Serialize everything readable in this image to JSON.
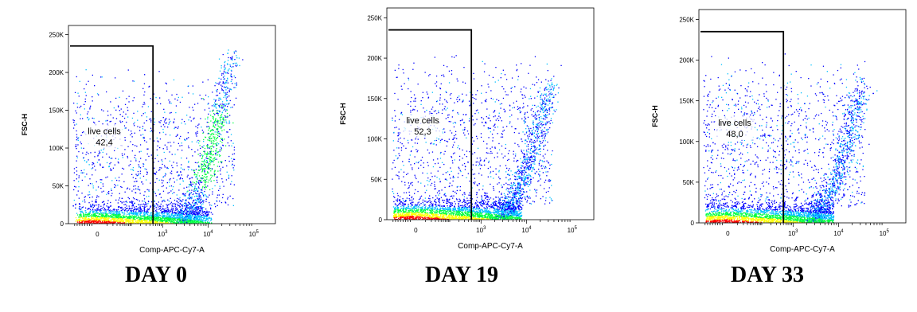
{
  "chart_data": [
    {
      "type": "scatter",
      "style": "density-dot-plot",
      "xlabel": "Comp-APC-Cy7-A",
      "ylabel": "FSC-H",
      "x_scale": "biexponential",
      "y_ticks": [
        "0",
        "50K",
        "100K",
        "150K",
        "200K",
        "250K"
      ],
      "ylim": [
        0,
        262144
      ],
      "x_ticks": [
        {
          "label": "0",
          "value": 0
        },
        {
          "label": "10",
          "exp": "3",
          "value": 1000
        },
        {
          "label": "10",
          "exp": "4",
          "value": 10000
        },
        {
          "label": "10",
          "exp": "5",
          "value": 100000
        }
      ],
      "gate": {
        "name": "live cells",
        "percent": "42,4",
        "x_max": 500,
        "y_max": 235000
      },
      "caption": "DAY 0",
      "density_colors": [
        "#0000ff",
        "#00c0ff",
        "#00ff40",
        "#ffff00",
        "#ff0000"
      ]
    },
    {
      "type": "scatter",
      "style": "density-dot-plot",
      "xlabel": "Comp-APC-Cy7-A",
      "ylabel": "FSC-H",
      "x_scale": "biexponential",
      "y_ticks": [
        "0",
        "50K",
        "100K",
        "150K",
        "200K",
        "250K"
      ],
      "ylim": [
        0,
        262144
      ],
      "x_ticks": [
        {
          "label": "0",
          "value": 0
        },
        {
          "label": "10",
          "exp": "3",
          "value": 1000
        },
        {
          "label": "10",
          "exp": "4",
          "value": 10000
        },
        {
          "label": "10",
          "exp": "5",
          "value": 100000
        }
      ],
      "gate": {
        "name": "live cells",
        "percent": "52,3",
        "x_max": 500,
        "y_max": 235000
      },
      "caption": "DAY 19",
      "density_colors": [
        "#0000ff",
        "#00c0ff",
        "#00ff40",
        "#ffff00",
        "#ff0000"
      ]
    },
    {
      "type": "scatter",
      "style": "density-dot-plot",
      "xlabel": "Comp-APC-Cy7-A",
      "ylabel": "FSC-H",
      "x_scale": "biexponential",
      "y_ticks": [
        "0",
        "50K",
        "100K",
        "150K",
        "200K",
        "250K"
      ],
      "ylim": [
        0,
        262144
      ],
      "x_ticks": [
        {
          "label": "0",
          "value": 0
        },
        {
          "label": "10",
          "exp": "3",
          "value": 1000
        },
        {
          "label": "10",
          "exp": "4",
          "value": 10000
        },
        {
          "label": "10",
          "exp": "5",
          "value": 100000
        }
      ],
      "gate": {
        "name": "live cells",
        "percent": "48,0",
        "x_max": 500,
        "y_max": 235000
      },
      "caption": "DAY 33",
      "density_colors": [
        "#0000ff",
        "#00c0ff",
        "#00ff40",
        "#ffff00",
        "#ff0000"
      ]
    }
  ]
}
